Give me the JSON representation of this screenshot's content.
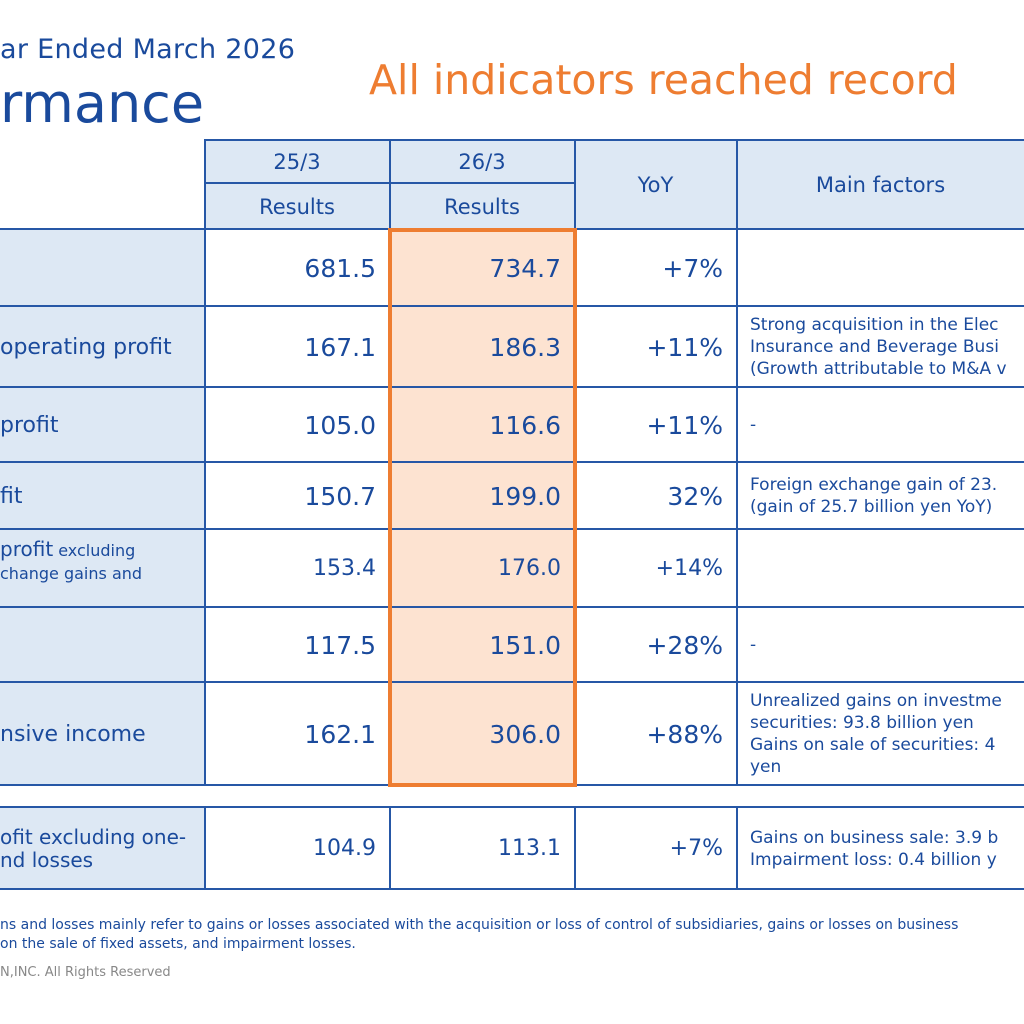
{
  "header": {
    "subtitle": "ar Ended March 2026",
    "title": "rmance",
    "headline": "All indicators reached record"
  },
  "table": {
    "columns": {
      "col1_period": "25/3",
      "col1_sub": "Results",
      "col2_period": "26/3",
      "col2_sub": "Results",
      "yoy": "YoY",
      "factors": "Main factors"
    },
    "rows": [
      {
        "label": "",
        "v1": "681.5",
        "v2": "734.7",
        "yoy": "+7%",
        "factors": []
      },
      {
        "label": "operating profit",
        "v1": "167.1",
        "v2": "186.3",
        "yoy": "+11%",
        "factors": [
          "Strong acquisition in the Elec",
          "Insurance and Beverage Busi",
          "(Growth attributable to M&A v"
        ]
      },
      {
        "label": "profit",
        "v1": "105.0",
        "v2": "116.6",
        "yoy": "+11%",
        "factors": [
          "-"
        ]
      },
      {
        "label": "fit",
        "v1": "150.7",
        "v2": "199.0",
        "yoy": "32%",
        "factors": [
          "Foreign exchange gain of 23.",
          "(gain of 25.7 billion yen YoY)"
        ]
      },
      {
        "label_main": "profit",
        "label_small_1": " excluding",
        "label_small_2": "change gains and",
        "v1": "153.4",
        "v2": "176.0",
        "yoy": "+14%",
        "factors": []
      },
      {
        "label": "",
        "v1": "117.5",
        "v2": "151.0",
        "yoy": "+28%",
        "factors": [
          "-"
        ]
      },
      {
        "label": "nsive income",
        "v1": "162.1",
        "v2": "306.0",
        "yoy": "+88%",
        "factors": [
          "Unrealized gains on investme",
          "securities: 93.8 billion yen",
          "Gains on sale of securities: 4",
          "yen"
        ]
      }
    ],
    "extra_row": {
      "label_1": "ofit excluding one-",
      "label_2": "nd losses",
      "v1": "104.9",
      "v2": "113.1",
      "yoy": "+7%",
      "factors": [
        "Gains on business sale: 3.9 b",
        "Impairment loss: 0.4 billion y"
      ]
    }
  },
  "footnote": {
    "line1": "ns and losses mainly refer to gains or losses associated with the acquisition or loss of control of subsidiaries, gains or losses on business",
    "line2": " on the sale of fixed assets, and impairment losses."
  },
  "copyright": "N,INC. All Rights Reserved",
  "colors": {
    "primary_blue": "#1a4a9c",
    "header_fill": "#dde8f4",
    "highlight_fill": "#fde3d1",
    "highlight_border": "#ee7d31"
  }
}
